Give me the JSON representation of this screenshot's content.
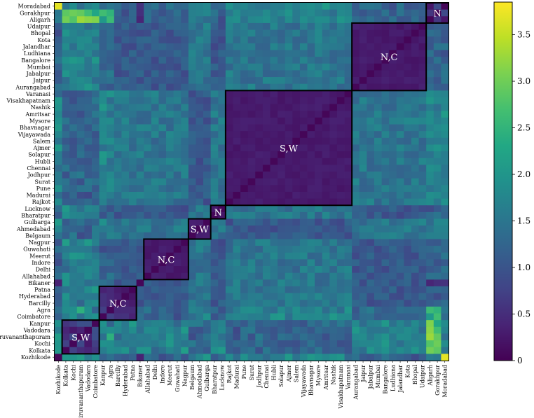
{
  "chart_data": {
    "type": "heatmap",
    "title": "",
    "xlabel": "",
    "ylabel": "",
    "row_labels": [
      "Moradabad",
      "Gorakhpur",
      "Aligarh",
      "Udaipur",
      "Bhopal",
      "Kota",
      "Jalandhar",
      "Ludhiana",
      "Bangalore",
      "Mumbai",
      "Jabalpur",
      "Jaipur",
      "Aurangabad",
      "Varanasi",
      "Visakhapatnam",
      "Nashik",
      "Amritsar",
      "Mysore",
      "Bhavnagar",
      "Vijayawada",
      "Salem",
      "Ajmer",
      "Solapur",
      "Hubli",
      "Chennai",
      "Jodhpur",
      "Surat",
      "Pune",
      "Madurai",
      "Rajkot",
      "Lucknow",
      "Bharatpur",
      "Gulbarga",
      "Ahmedabad",
      "Belgaum",
      "Nagpur",
      "Guwahati",
      "Meerut",
      "Indore",
      "Delhi",
      "Allahabad",
      "Bikaner",
      "Patna",
      "Hyderabad",
      "Barcilly",
      "Agra",
      "Coimbatore",
      "Kanpur",
      "Vadodara",
      "Thiruvananthapuram",
      "Kochi",
      "Kolkata",
      "Kozhikode"
    ],
    "col_labels": [
      "Kozhikode",
      "Kolkata",
      "Kochi",
      "Thiruvananthapuram",
      "Vadodara",
      "Coimbatore",
      "Kanpur",
      "Agra",
      "Barcilly",
      "Hyderabad",
      "Patna",
      "Bikaner",
      "Allahabad",
      "Delhi",
      "Indore",
      "Meerut",
      "Guwahati",
      "Nagpur",
      "Belgaum",
      "Ahmedabad",
      "Gulbarga",
      "Bharatpur",
      "Lucknow",
      "Rajkot",
      "Madurai",
      "Pune",
      "Surat",
      "Jodhpur",
      "Chennai",
      "Hubli",
      "Solapur",
      "Ajmer",
      "Salem",
      "Vijayawada",
      "Bhavnagar",
      "Mysore",
      "Amritsar",
      "Nashik",
      "Visakhapatnam",
      "Varanasi",
      "Aurangabad",
      "Jaipur",
      "Jabalpur",
      "Mumbai",
      "Bangalore",
      "Ludhiana",
      "Jalandhar",
      "Kota",
      "Bhopal",
      "Udaipur",
      "Aligarh",
      "Gorakhpur",
      "Moradabad"
    ],
    "clusters": [
      {
        "label": "N",
        "start": 0,
        "size": 3
      },
      {
        "label": "N,C",
        "start": 3,
        "size": 10
      },
      {
        "label": "S,W",
        "start": 13,
        "size": 17
      },
      {
        "label": "N",
        "start": 30,
        "size": 2
      },
      {
        "label": "S,W",
        "start": 32,
        "size": 3
      },
      {
        "label": "N,C",
        "start": 35,
        "size": 6
      },
      {
        "label": "N,C",
        "start": 42,
        "size": 5
      },
      {
        "label": "S,W",
        "start": 47,
        "size": 5
      }
    ],
    "colorbar": {
      "min": 0,
      "max": 3.85,
      "ticks": [
        "0",
        "0.5",
        "1.0",
        "1.5",
        "2.0",
        "2.5",
        "3.0",
        "3.5"
      ],
      "colormap": "viridis"
    }
  }
}
